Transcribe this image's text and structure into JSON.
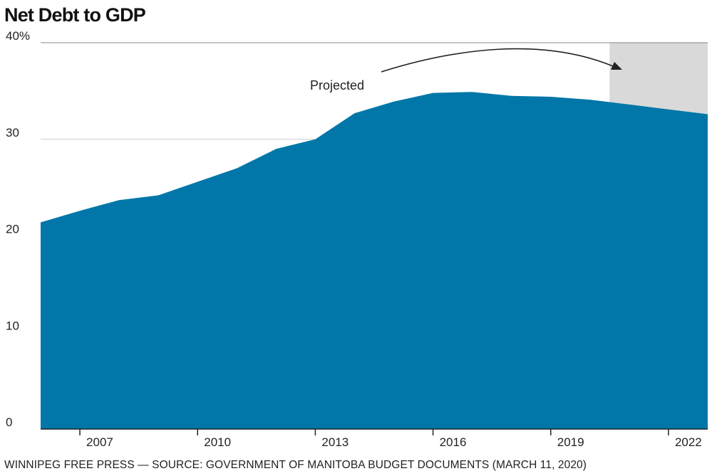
{
  "title": "Net Debt to GDP",
  "source": "WINNIPEG FREE PRESS — SOURCE: GOVERNMENT OF MANITOBA BUDGET DOCUMENTS (MARCH 11, 2020)",
  "colors": {
    "area": "#0077a8",
    "projected_shade": "#d9d9d9",
    "grid": "#cccccc",
    "axis": "#222222"
  },
  "chart_data": {
    "type": "area",
    "title": "Net Debt to GDP",
    "xlabel": "",
    "ylabel": "",
    "x": [
      2006,
      2007,
      2008,
      2009,
      2010,
      2011,
      2012,
      2013,
      2014,
      2015,
      2016,
      2017,
      2018,
      2019,
      2020,
      2021,
      2022,
      2023
    ],
    "values": [
      21.4,
      22.6,
      23.7,
      24.2,
      25.6,
      27.0,
      29.0,
      30.0,
      32.7,
      33.9,
      34.8,
      34.9,
      34.5,
      34.4,
      34.1,
      33.6,
      33.1,
      32.6
    ],
    "xlim": [
      2006,
      2023
    ],
    "ylim": [
      0,
      40
    ],
    "yticks": [
      0,
      10,
      20,
      30,
      40
    ],
    "ytick_labels": [
      "0",
      "10",
      "20",
      "30",
      "40%"
    ],
    "xticks": [
      2007,
      2010,
      2013,
      2016,
      2019,
      2022
    ],
    "xtick_labels": [
      "2007",
      "2010",
      "2013",
      "2016",
      "2019",
      "2022"
    ],
    "projected_from": 2020.5,
    "annotation": "Projected",
    "grid": true,
    "legend": "none"
  }
}
